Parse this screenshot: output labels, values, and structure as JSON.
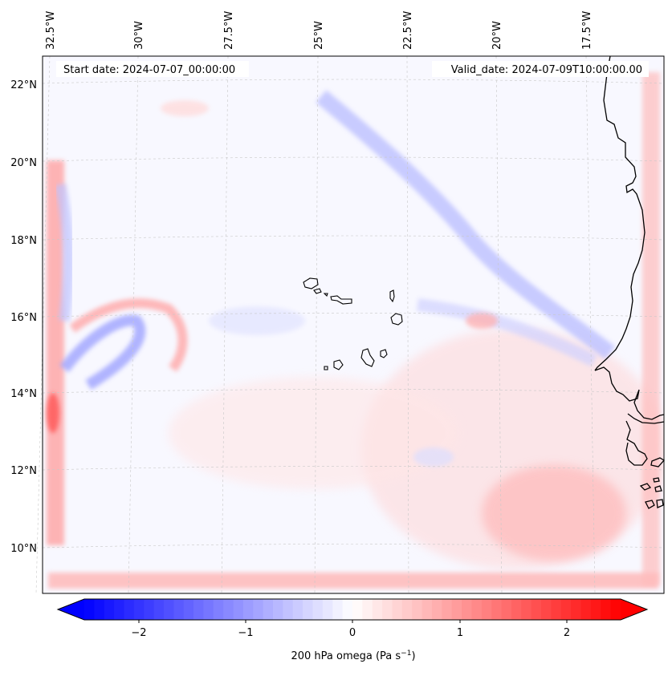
{
  "map": {
    "start_label": "Start date: 2024-07-07_00:00:00",
    "valid_label": "Valid_date: 2024-07-09T10:00:00.00",
    "lon_labels": [
      "32.5°W",
      "30°W",
      "27.5°W",
      "25°W",
      "22.5°W",
      "20°W",
      "17.5°W"
    ],
    "lat_labels": [
      "22°N",
      "20°N",
      "18°N",
      "16°N",
      "14°N",
      "12°N",
      "10°N"
    ],
    "features": [
      "Cape Verde islands",
      "West African coastline"
    ]
  },
  "colorbar": {
    "ticks": [
      "−2",
      "−1",
      "0",
      "1",
      "2"
    ],
    "label_main": "200 hPa omega (Pa s",
    "label_sup": "−1",
    "label_close": ")",
    "vmin": -2.7,
    "vmax": 2.7,
    "low_color": "#0000ff",
    "mid_color": "#ffffff",
    "high_color": "#ff0000"
  }
}
